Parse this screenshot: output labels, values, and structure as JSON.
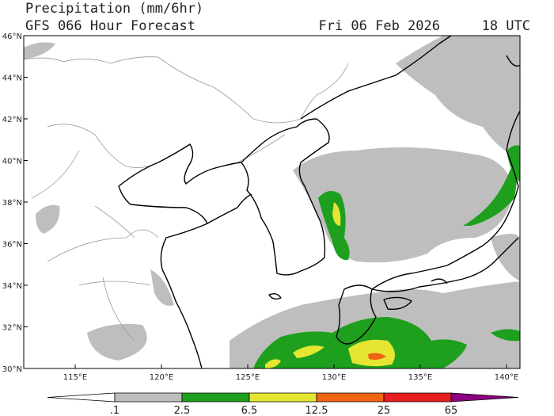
{
  "header": {
    "title": "Precipitation (mm/6hr)",
    "subtitle": "GFS 066 Hour Forecast",
    "date": "Fri 06 Feb 2026",
    "time": "18 UTC"
  },
  "map": {
    "lat_labels": [
      "30°N",
      "32°N",
      "34°N",
      "36°N",
      "38°N",
      "40°N",
      "42°N",
      "44°N",
      "46°N"
    ],
    "lon_labels": [
      "115°E",
      "120°E",
      "125°E",
      "130°E",
      "135°E",
      "140°E"
    ]
  },
  "legend": {
    "labels": [
      ".1",
      "2.5",
      "6.5",
      "12.5",
      "25",
      "65"
    ],
    "colors": [
      "#ffffff",
      "#bebebe",
      "#1ea01e",
      "#e6e632",
      "#f06414",
      "#e61e1e",
      "#8c0082"
    ]
  }
}
